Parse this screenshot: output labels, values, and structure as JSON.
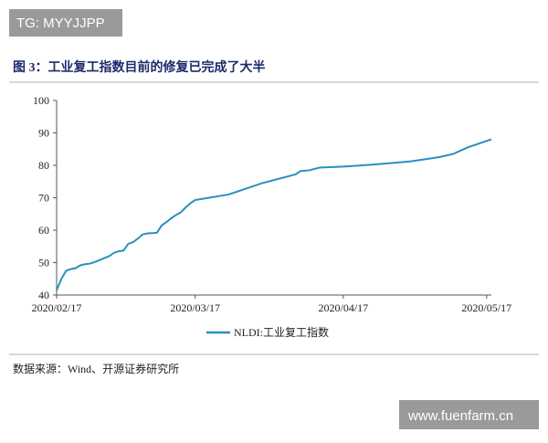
{
  "watermark_top": "TG: MYYJJPP",
  "watermark_bottom": "www.fuenfarm.cn",
  "source": "数据来源：Wind、开源证券研究所",
  "chart_data": {
    "type": "line",
    "title": "图 3：工业复工指数目前的修复已完成了大半",
    "x": [
      "2020/02/17",
      "2020/02/18",
      "2020/02/19",
      "2020/02/20",
      "2020/02/21",
      "2020/02/22",
      "2020/02/23",
      "2020/02/24",
      "2020/02/25",
      "2020/02/26",
      "2020/02/27",
      "2020/02/28",
      "2020/02/29",
      "2020/03/01",
      "2020/03/02",
      "2020/03/03",
      "2020/03/04",
      "2020/03/05",
      "2020/03/06",
      "2020/03/07",
      "2020/03/08",
      "2020/03/09",
      "2020/03/10",
      "2020/03/11",
      "2020/03/12",
      "2020/03/13",
      "2020/03/14",
      "2020/03/15",
      "2020/03/16",
      "2020/03/17",
      "2020/03/24",
      "2020/03/31",
      "2020/04/07",
      "2020/04/08",
      "2020/04/10",
      "2020/04/12",
      "2020/04/17",
      "2020/04/24",
      "2020/05/01",
      "2020/05/07",
      "2020/05/10",
      "2020/05/13",
      "2020/05/18"
    ],
    "series": [
      {
        "name": "NLDI:工业复工指数",
        "color": "#2a8fc1",
        "values": [
          41.5,
          45,
          47.5,
          48,
          48.3,
          49.2,
          49.5,
          49.7,
          50.2,
          50.8,
          51.4,
          52,
          53,
          53.5,
          53.7,
          55.8,
          56.3,
          57.4,
          58.7,
          59,
          59.1,
          59.2,
          61.5,
          62.5,
          63.7,
          64.7,
          65.5,
          67,
          68.3,
          69.3,
          71,
          74.5,
          77.2,
          78.2,
          78.5,
          79.3,
          79.6,
          80.3,
          81.2,
          82.5,
          83.5,
          85.5,
          88
        ]
      }
    ],
    "xlim": [
      "2020/02/17",
      "2020/05/18"
    ],
    "xticks": [
      "2020/02/17",
      "2020/03/17",
      "2020/04/17",
      "2020/05/17"
    ],
    "ylim": [
      40,
      100
    ],
    "yticks": [
      40,
      50,
      60,
      70,
      80,
      90,
      100
    ],
    "grid": false
  }
}
